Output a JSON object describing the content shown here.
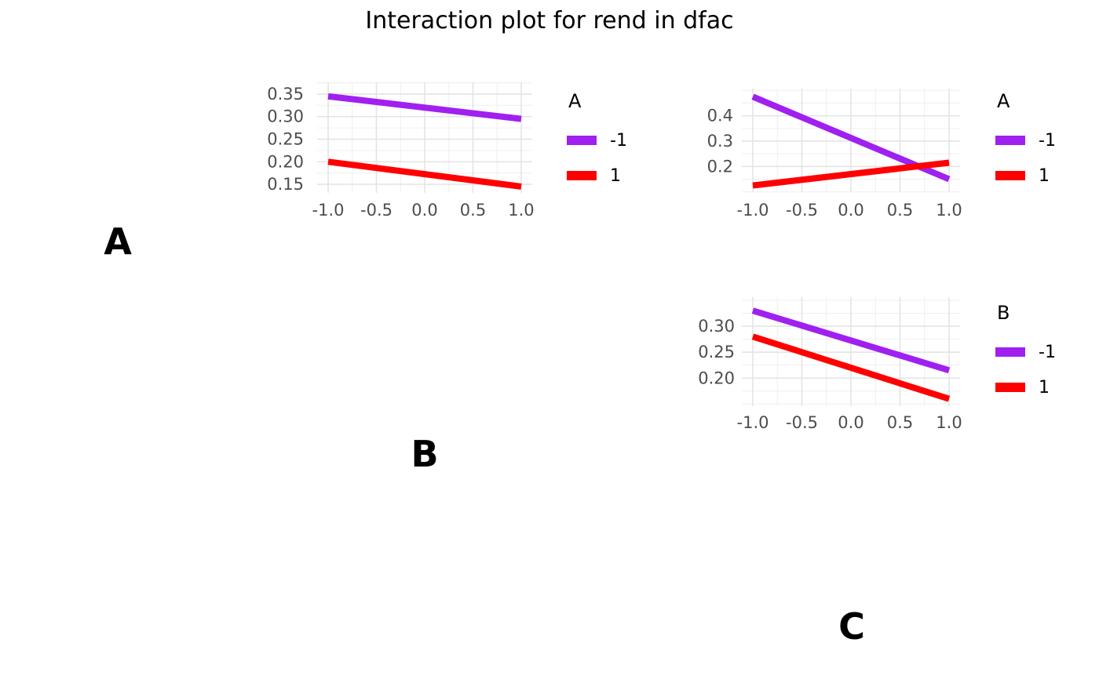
{
  "title": "Interaction plot for rend in dfac",
  "colors": {
    "purple": "#A020F0",
    "red": "#FF0000",
    "axis_text": "#4D4D4D",
    "grid_major": "#E4E4E4",
    "grid_minor": "#F0F0F0",
    "background": "#FFFFFF",
    "text": "#000000"
  },
  "diagonal_labels": {
    "a": "A",
    "b": "B",
    "c": "C"
  },
  "chart_data": [
    {
      "id": "subplot-top-middle",
      "type": "line",
      "legend_title": "A",
      "legend_position": "right",
      "grid": true,
      "x": [
        -1,
        1
      ],
      "xticks": [
        -1.0,
        -0.5,
        0.0,
        0.5,
        1.0
      ],
      "xtick_labels": [
        "-1.0",
        "-0.5",
        "0.0",
        "0.5",
        "1.0"
      ],
      "xticks_minor": [
        -0.75,
        -0.25,
        0.25,
        0.75
      ],
      "xlim": [
        -1.114,
        1.114
      ],
      "yticks": [
        0.15,
        0.2,
        0.25,
        0.3,
        0.35
      ],
      "ytick_labels": [
        "0.15",
        "0.20",
        "0.25",
        "0.30",
        "0.35"
      ],
      "yticks_minor": [
        0.175,
        0.225,
        0.275,
        0.325,
        0.375
      ],
      "ylim": [
        0.131,
        0.376
      ],
      "series": [
        {
          "name": "-1",
          "color": "#A020F0",
          "values": [
            0.345,
            0.295
          ]
        },
        {
          "name": "1",
          "color": "#FF0000",
          "values": [
            0.2,
            0.145
          ]
        }
      ]
    },
    {
      "id": "subplot-top-right",
      "type": "line",
      "legend_title": "A",
      "legend_position": "right",
      "grid": true,
      "x": [
        -1,
        1
      ],
      "xticks": [
        -1.0,
        -0.5,
        0.0,
        0.5,
        1.0
      ],
      "xtick_labels": [
        "-1.0",
        "-0.5",
        "0.0",
        "0.5",
        "1.0"
      ],
      "xticks_minor": [
        -0.75,
        -0.25,
        0.25,
        0.75
      ],
      "xlim": [
        -1.112,
        1.112
      ],
      "yticks": [
        0.2,
        0.3,
        0.4
      ],
      "ytick_labels": [
        "0.2",
        "0.3",
        "0.4"
      ],
      "yticks_minor": [
        0.1,
        0.15,
        0.25,
        0.35,
        0.45,
        0.5
      ],
      "ylim": [
        0.099,
        0.507
      ],
      "series": [
        {
          "name": "-1",
          "color": "#A020F0",
          "values": [
            0.475,
            0.15
          ]
        },
        {
          "name": "1",
          "color": "#FF0000",
          "values": [
            0.125,
            0.215
          ]
        }
      ]
    },
    {
      "id": "subplot-middle-right",
      "type": "line",
      "legend_title": "B",
      "legend_position": "right",
      "grid": true,
      "x": [
        -1,
        1
      ],
      "xticks": [
        -1.0,
        -0.5,
        0.0,
        0.5,
        1.0
      ],
      "xtick_labels": [
        "-1.0",
        "-0.5",
        "0.0",
        "0.5",
        "1.0"
      ],
      "xticks_minor": [
        -0.75,
        -0.25,
        0.25,
        0.75
      ],
      "xlim": [
        -1.112,
        1.112
      ],
      "yticks": [
        0.2,
        0.25,
        0.3
      ],
      "ytick_labels": [
        "0.20",
        "0.25",
        "0.30"
      ],
      "yticks_minor": [
        0.15,
        0.175,
        0.225,
        0.275,
        0.325,
        0.35
      ],
      "ylim": [
        0.146,
        0.356
      ],
      "series": [
        {
          "name": "-1",
          "color": "#A020F0",
          "values": [
            0.33,
            0.215
          ]
        },
        {
          "name": "1",
          "color": "#FF0000",
          "values": [
            0.28,
            0.16
          ]
        }
      ]
    }
  ]
}
